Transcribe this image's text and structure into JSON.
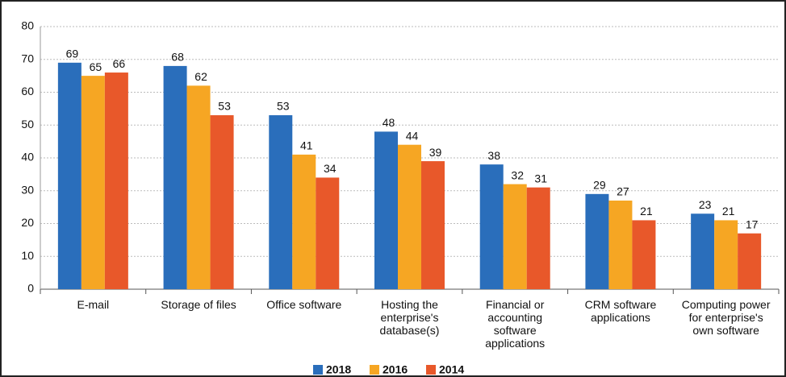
{
  "chart_data": {
    "type": "bar",
    "categories": [
      "E-mail",
      "Storage of files",
      "Office software",
      "Hosting the enterprise's database(s)",
      "Financial or accounting software applications",
      "CRM software applications",
      "Computing power for enterprise's own software"
    ],
    "series": [
      {
        "name": "2018",
        "color": "#2a6ebb",
        "values": [
          69,
          68,
          53,
          48,
          38,
          29,
          23
        ]
      },
      {
        "name": "2016",
        "color": "#f6a623",
        "values": [
          65,
          62,
          41,
          44,
          32,
          27,
          21
        ]
      },
      {
        "name": "2014",
        "color": "#e8582a",
        "values": [
          66,
          53,
          34,
          39,
          31,
          21,
          17
        ]
      }
    ],
    "ylim": [
      0,
      80
    ],
    "yticks": [
      0,
      10,
      20,
      30,
      40,
      50,
      60,
      70,
      80
    ],
    "grid": true,
    "legend": "bottom"
  }
}
